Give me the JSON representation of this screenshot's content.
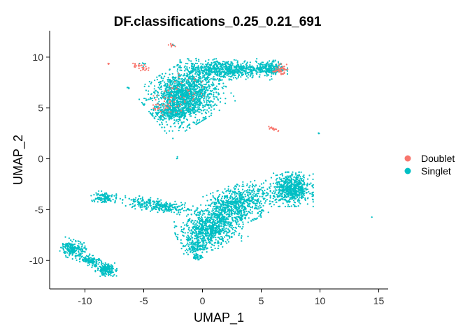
{
  "chart_data": {
    "type": "scatter",
    "title": "DF.classifications_0.25_0.21_691",
    "xlabel": "UMAP_1",
    "ylabel": "UMAP_2",
    "xlim": [
      -13.0,
      15.8
    ],
    "ylim": [
      -12.8,
      12.6
    ],
    "xticks": [
      -10,
      -5,
      0,
      5,
      10,
      15
    ],
    "yticks": [
      -10,
      -5,
      0,
      5,
      10
    ],
    "xtick_labels": [
      "-10",
      "-5",
      "0",
      "5",
      "10",
      "15"
    ],
    "ytick_labels": [
      "-10",
      "-5",
      "0",
      "5",
      "10"
    ],
    "grid": false,
    "legend_position": "right",
    "series": [
      {
        "name": "Doublet",
        "color": "#F8766D",
        "clusters": [
          {
            "cx": -5.2,
            "cy": 9.0,
            "rx": 0.6,
            "ry": 0.3,
            "angle": -15,
            "n": 30
          },
          {
            "cx": -8.0,
            "cy": 9.4,
            "rx": 0.1,
            "ry": 0.1,
            "angle": 0,
            "n": 3
          },
          {
            "cx": -2.6,
            "cy": 11.1,
            "rx": 0.3,
            "ry": 0.15,
            "angle": -30,
            "n": 8
          },
          {
            "cx": 6.6,
            "cy": 8.8,
            "rx": 0.5,
            "ry": 0.4,
            "angle": 0,
            "n": 45
          },
          {
            "cx": 5.9,
            "cy": 3.0,
            "rx": 0.5,
            "ry": 0.12,
            "angle": -25,
            "n": 16
          },
          {
            "cx": -2.0,
            "cy": 6.3,
            "rx": 2.0,
            "ry": 1.6,
            "angle": 30,
            "n": 55
          },
          {
            "cx": -3.2,
            "cy": 5.2,
            "rx": 1.0,
            "ry": 0.8,
            "angle": 0,
            "n": 20
          }
        ]
      },
      {
        "name": "Singlet",
        "color": "#00BFC4",
        "clusters": [
          {
            "cx": -1.5,
            "cy": 6.2,
            "rx": 2.6,
            "ry": 2.2,
            "angle": 35,
            "n": 1600
          },
          {
            "cx": 2.0,
            "cy": 8.8,
            "rx": 3.0,
            "ry": 0.8,
            "angle": 0,
            "n": 650
          },
          {
            "cx": 5.8,
            "cy": 8.9,
            "rx": 1.1,
            "ry": 0.6,
            "angle": 0,
            "n": 220
          },
          {
            "cx": -2.6,
            "cy": 4.6,
            "rx": 1.2,
            "ry": 0.6,
            "angle": 0,
            "n": 220
          },
          {
            "cx": -5.0,
            "cy": 9.3,
            "rx": 0.35,
            "ry": 0.2,
            "angle": 0,
            "n": 6
          },
          {
            "cx": -6.3,
            "cy": 7.0,
            "rx": 0.12,
            "ry": 0.12,
            "angle": 0,
            "n": 4
          },
          {
            "cx": 7.6,
            "cy": -3.0,
            "rx": 1.4,
            "ry": 1.3,
            "angle": 0,
            "n": 700
          },
          {
            "cx": 2.8,
            "cy": -4.6,
            "rx": 2.6,
            "ry": 1.5,
            "angle": 25,
            "n": 850
          },
          {
            "cx": 0.6,
            "cy": -7.0,
            "rx": 2.2,
            "ry": 1.5,
            "angle": 20,
            "n": 750
          },
          {
            "cx": -0.6,
            "cy": -8.7,
            "rx": 0.8,
            "ry": 0.5,
            "angle": 0,
            "n": 90
          },
          {
            "cx": -0.4,
            "cy": -9.6,
            "rx": 0.35,
            "ry": 0.3,
            "angle": 0,
            "n": 40
          },
          {
            "cx": -3.8,
            "cy": -4.6,
            "rx": 2.8,
            "ry": 0.5,
            "angle": -10,
            "n": 320
          },
          {
            "cx": -8.5,
            "cy": -3.8,
            "rx": 0.9,
            "ry": 0.5,
            "angle": 0,
            "n": 110
          },
          {
            "cx": -11.0,
            "cy": -8.9,
            "rx": 0.8,
            "ry": 0.7,
            "angle": -20,
            "n": 220
          },
          {
            "cx": -9.6,
            "cy": -10.0,
            "rx": 0.9,
            "ry": 0.45,
            "angle": -20,
            "n": 120
          },
          {
            "cx": -8.2,
            "cy": -10.9,
            "rx": 0.7,
            "ry": 0.5,
            "angle": 0,
            "n": 200
          },
          {
            "cx": 9.9,
            "cy": 2.5,
            "rx": 0.1,
            "ry": 0.1,
            "angle": 0,
            "n": 4
          },
          {
            "cx": 14.4,
            "cy": -5.7,
            "rx": 0.05,
            "ry": 0.05,
            "angle": 0,
            "n": 1
          },
          {
            "cx": -2.5,
            "cy": 11.2,
            "rx": 0.08,
            "ry": 0.08,
            "angle": 0,
            "n": 2
          },
          {
            "cx": -2.2,
            "cy": 0.1,
            "rx": 0.1,
            "ry": 0.1,
            "angle": 0,
            "n": 3
          }
        ]
      }
    ]
  }
}
